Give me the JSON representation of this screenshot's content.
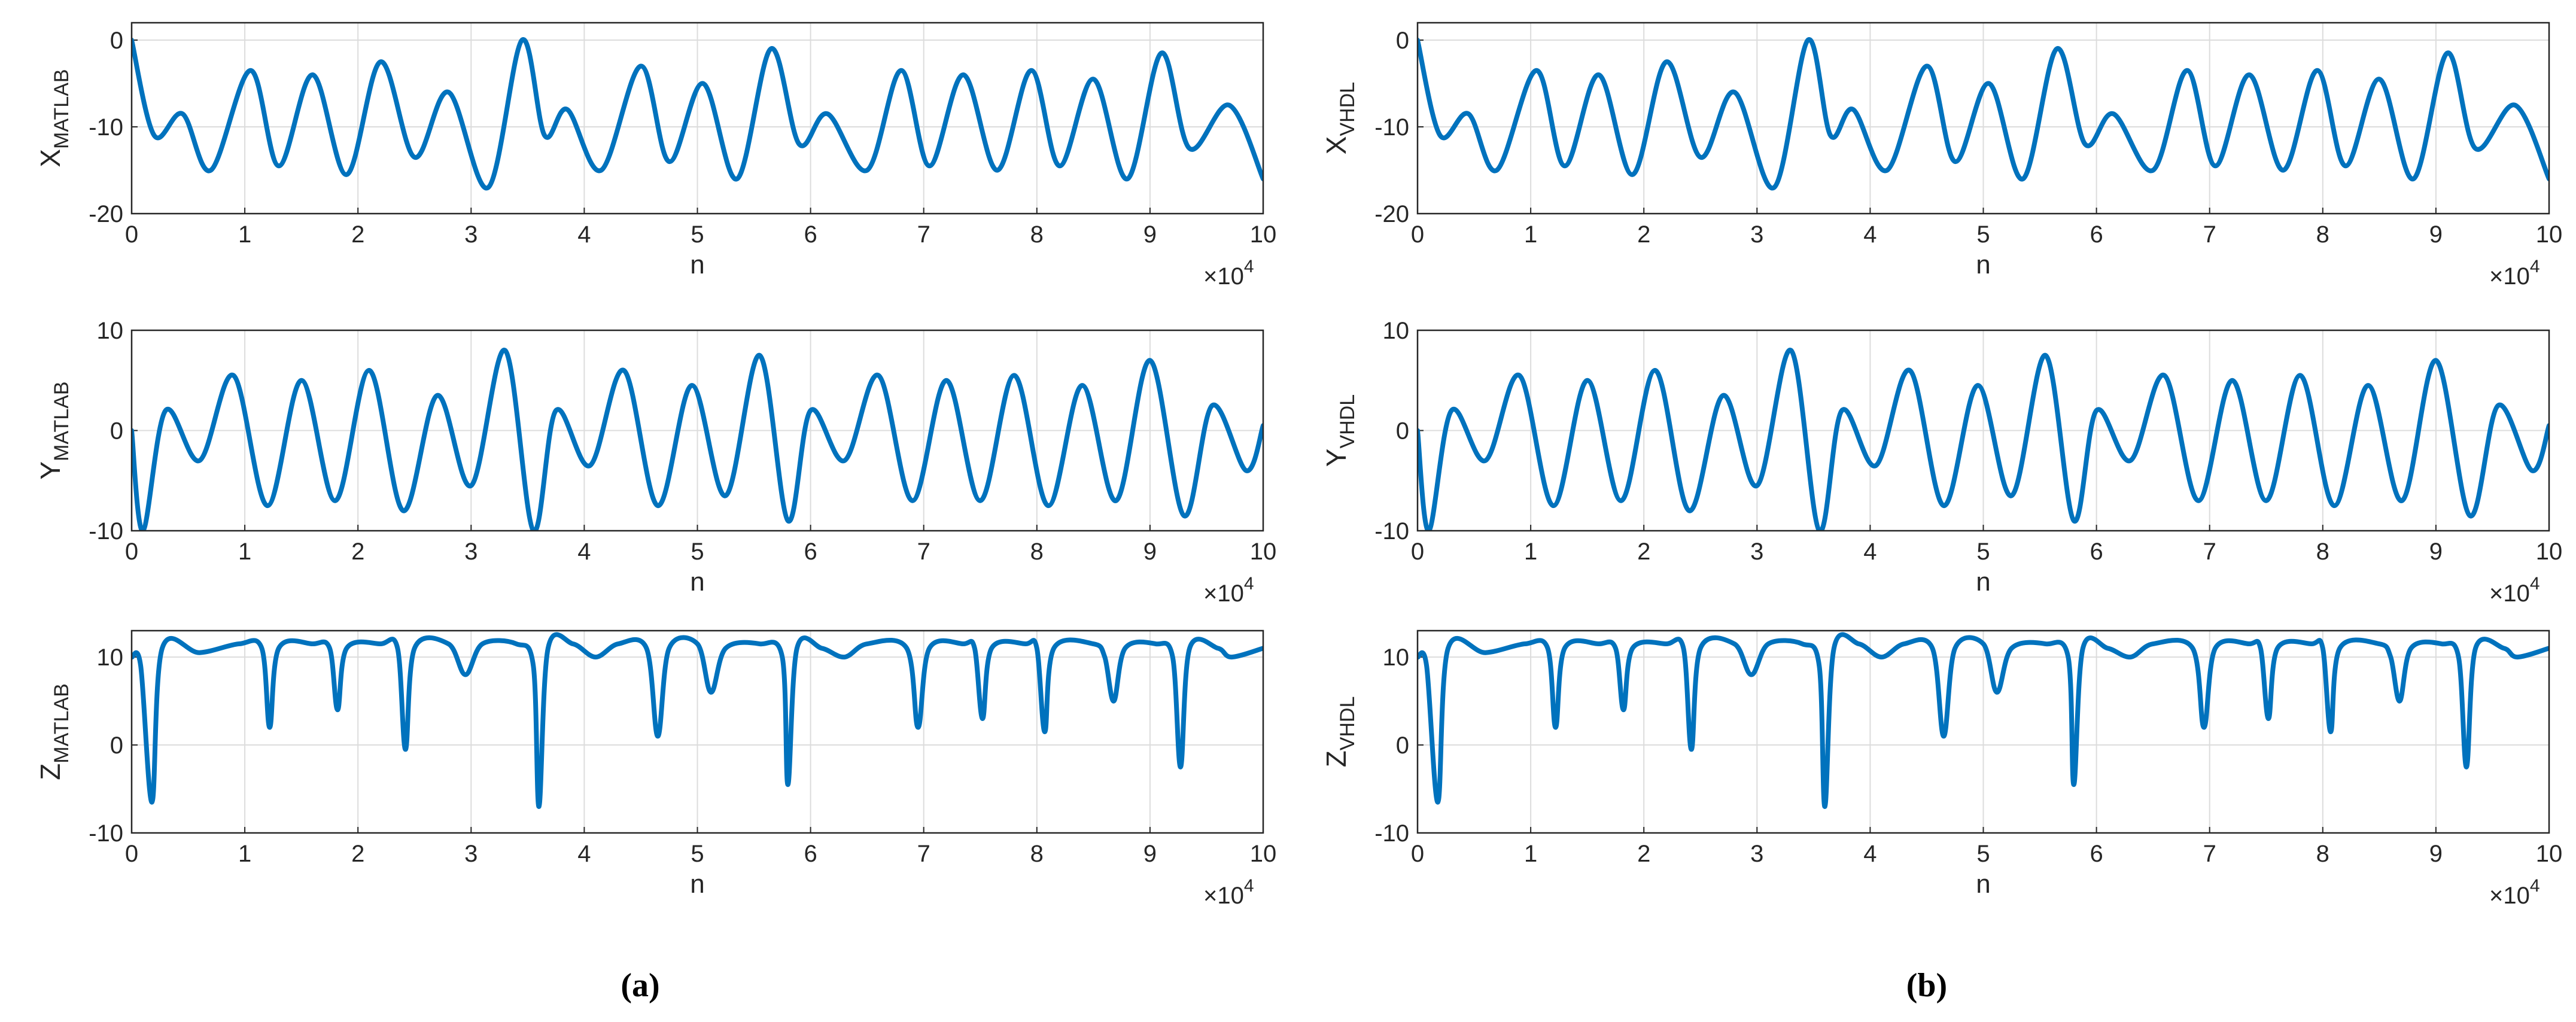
{
  "chart_data": [
    {
      "type": "line",
      "ylabel": "X",
      "ylabel_sub": "MATLAB",
      "xlabel": "n",
      "x_multiplier": "×10",
      "x_exponent": "4",
      "color": "#0072bd",
      "grid": true,
      "xlim": [
        0,
        10
      ],
      "xticks": [
        0,
        1,
        2,
        3,
        4,
        5,
        6,
        7,
        8,
        9,
        10
      ],
      "ylim": [
        -20,
        2
      ],
      "yticks": [
        -20,
        -10,
        0
      ],
      "x": [
        0,
        0.2,
        0.45,
        0.7,
        1.05,
        1.3,
        1.6,
        1.9,
        2.2,
        2.5,
        2.8,
        3.15,
        3.45,
        3.65,
        3.85,
        4.15,
        4.5,
        4.75,
        5.05,
        5.35,
        5.65,
        5.9,
        6.15,
        6.5,
        6.8,
        7.05,
        7.35,
        7.65,
        7.95,
        8.2,
        8.5,
        8.8,
        9.1,
        9.35,
        9.7,
        10
      ],
      "values": [
        0,
        -11,
        -8.5,
        -15,
        -3.5,
        -14.5,
        -4,
        -15.5,
        -2.5,
        -13.5,
        -6,
        -17,
        0,
        -11,
        -8,
        -15,
        -3,
        -14,
        -5,
        -16,
        -1,
        -12,
        -8.5,
        -15,
        -3.5,
        -14.5,
        -4,
        -15,
        -3.5,
        -14.5,
        -4.5,
        -16,
        -1.5,
        -12.5,
        -7.5,
        -16
      ]
    },
    {
      "type": "line",
      "ylabel": "Y",
      "ylabel_sub": "MATLAB",
      "xlabel": "n",
      "x_multiplier": "×10",
      "x_exponent": "4",
      "color": "#0072bd",
      "grid": true,
      "xlim": [
        0,
        10
      ],
      "xticks": [
        0,
        1,
        2,
        3,
        4,
        5,
        6,
        7,
        8,
        9,
        10
      ],
      "ylim": [
        -10,
        10
      ],
      "yticks": [
        -10,
        0,
        10
      ],
      "x": [
        0,
        0.1,
        0.3,
        0.6,
        0.9,
        1.2,
        1.5,
        1.8,
        2.1,
        2.4,
        2.7,
        3.0,
        3.3,
        3.55,
        3.75,
        4.05,
        4.35,
        4.65,
        4.95,
        5.25,
        5.55,
        5.8,
        6.0,
        6.3,
        6.6,
        6.9,
        7.2,
        7.5,
        7.8,
        8.1,
        8.4,
        8.7,
        9.0,
        9.3,
        9.55,
        9.85,
        10
      ],
      "values": [
        0,
        -10,
        2,
        -3,
        5.5,
        -7.5,
        5,
        -7,
        6,
        -8,
        3.5,
        -5.5,
        8,
        -10,
        2,
        -3.5,
        6,
        -7.5,
        4.5,
        -6.5,
        7.5,
        -9,
        2,
        -3,
        5.5,
        -7,
        5,
        -7,
        5.5,
        -7.5,
        4.5,
        -7,
        7,
        -8.5,
        2.5,
        -4,
        0.5
      ]
    },
    {
      "type": "line",
      "ylabel": "Z",
      "ylabel_sub": "MATLAB",
      "xlabel": "n",
      "x_multiplier": "×10",
      "x_exponent": "4",
      "color": "#0072bd",
      "grid": true,
      "xlim": [
        0,
        10
      ],
      "xticks": [
        0,
        1,
        2,
        3,
        4,
        5,
        6,
        7,
        8,
        9,
        10
      ],
      "ylim": [
        -10,
        13
      ],
      "yticks": [
        -10,
        0,
        10
      ],
      "x": [
        0,
        0.08,
        0.18,
        0.27,
        0.6,
        0.95,
        1.15,
        1.22,
        1.3,
        1.6,
        1.75,
        1.82,
        1.9,
        2.2,
        2.35,
        2.42,
        2.5,
        2.8,
        2.95,
        3.1,
        3.4,
        3.55,
        3.6,
        3.68,
        3.9,
        4.1,
        4.3,
        4.55,
        4.65,
        4.75,
        5.0,
        5.12,
        5.25,
        5.55,
        5.75,
        5.8,
        5.88,
        6.1,
        6.3,
        6.5,
        6.85,
        6.95,
        7.05,
        7.35,
        7.45,
        7.52,
        7.6,
        7.9,
        8.0,
        8.07,
        8.15,
        8.5,
        8.6,
        8.68,
        8.78,
        9.05,
        9.2,
        9.27,
        9.35,
        9.6,
        9.72,
        10
      ],
      "values": [
        10,
        9,
        -6.5,
        11,
        10.5,
        11.5,
        11,
        2,
        11,
        11.5,
        11,
        4,
        11,
        11.5,
        11,
        -0.5,
        11,
        11.5,
        8,
        11.5,
        11.5,
        9,
        -7,
        11,
        11.5,
        10,
        11.5,
        11,
        1,
        11,
        11.5,
        6,
        11,
        11.5,
        10,
        -4.5,
        11,
        11,
        10,
        11.5,
        11,
        2,
        11,
        11.5,
        11,
        3,
        11,
        11.5,
        11,
        1.5,
        11,
        11.5,
        10,
        5,
        11,
        11.5,
        10,
        -2.5,
        11,
        11,
        10,
        11
      ]
    },
    {
      "type": "line",
      "ylabel": "X",
      "ylabel_sub": "VHDL",
      "xlabel": "n",
      "x_multiplier": "×10",
      "x_exponent": "4",
      "color": "#0072bd",
      "grid": true,
      "xlim": [
        0,
        10
      ],
      "xticks": [
        0,
        1,
        2,
        3,
        4,
        5,
        6,
        7,
        8,
        9,
        10
      ],
      "ylim": [
        -20,
        2
      ],
      "yticks": [
        -20,
        -10,
        0
      ],
      "x": [
        0,
        0.2,
        0.45,
        0.7,
        1.05,
        1.3,
        1.6,
        1.9,
        2.2,
        2.5,
        2.8,
        3.15,
        3.45,
        3.65,
        3.85,
        4.15,
        4.5,
        4.75,
        5.05,
        5.35,
        5.65,
        5.9,
        6.15,
        6.5,
        6.8,
        7.05,
        7.35,
        7.65,
        7.95,
        8.2,
        8.5,
        8.8,
        9.1,
        9.35,
        9.7,
        10
      ],
      "values": [
        0,
        -11,
        -8.5,
        -15,
        -3.5,
        -14.5,
        -4,
        -15.5,
        -2.5,
        -13.5,
        -6,
        -17,
        0,
        -11,
        -8,
        -15,
        -3,
        -14,
        -5,
        -16,
        -1,
        -12,
        -8.5,
        -15,
        -3.5,
        -14.5,
        -4,
        -15,
        -3.5,
        -14.5,
        -4.5,
        -16,
        -1.5,
        -12.5,
        -7.5,
        -16
      ]
    },
    {
      "type": "line",
      "ylabel": "Y",
      "ylabel_sub": "VHDL",
      "xlabel": "n",
      "x_multiplier": "×10",
      "x_exponent": "4",
      "color": "#0072bd",
      "grid": true,
      "xlim": [
        0,
        10
      ],
      "xticks": [
        0,
        1,
        2,
        3,
        4,
        5,
        6,
        7,
        8,
        9,
        10
      ],
      "ylim": [
        -10,
        10
      ],
      "yticks": [
        -10,
        0,
        10
      ],
      "x": [
        0,
        0.1,
        0.3,
        0.6,
        0.9,
        1.2,
        1.5,
        1.8,
        2.1,
        2.4,
        2.7,
        3.0,
        3.3,
        3.55,
        3.75,
        4.05,
        4.35,
        4.65,
        4.95,
        5.25,
        5.55,
        5.8,
        6.0,
        6.3,
        6.6,
        6.9,
        7.2,
        7.5,
        7.8,
        8.1,
        8.4,
        8.7,
        9.0,
        9.3,
        9.55,
        9.85,
        10
      ],
      "values": [
        0,
        -10,
        2,
        -3,
        5.5,
        -7.5,
        5,
        -7,
        6,
        -8,
        3.5,
        -5.5,
        8,
        -10,
        2,
        -3.5,
        6,
        -7.5,
        4.5,
        -6.5,
        7.5,
        -9,
        2,
        -3,
        5.5,
        -7,
        5,
        -7,
        5.5,
        -7.5,
        4.5,
        -7,
        7,
        -8.5,
        2.5,
        -4,
        0.5
      ]
    },
    {
      "type": "line",
      "ylabel": "Z",
      "ylabel_sub": "VHDL",
      "xlabel": "n",
      "x_multiplier": "×10",
      "x_exponent": "4",
      "color": "#0072bd",
      "grid": true,
      "xlim": [
        0,
        10
      ],
      "xticks": [
        0,
        1,
        2,
        3,
        4,
        5,
        6,
        7,
        8,
        9,
        10
      ],
      "ylim": [
        -10,
        13
      ],
      "yticks": [
        -10,
        0,
        10
      ],
      "x": [
        0,
        0.08,
        0.18,
        0.27,
        0.6,
        0.95,
        1.15,
        1.22,
        1.3,
        1.6,
        1.75,
        1.82,
        1.9,
        2.2,
        2.35,
        2.42,
        2.5,
        2.8,
        2.95,
        3.1,
        3.4,
        3.55,
        3.6,
        3.68,
        3.9,
        4.1,
        4.3,
        4.55,
        4.65,
        4.75,
        5.0,
        5.12,
        5.25,
        5.55,
        5.75,
        5.8,
        5.88,
        6.1,
        6.3,
        6.5,
        6.85,
        6.95,
        7.05,
        7.35,
        7.45,
        7.52,
        7.6,
        7.9,
        8.0,
        8.07,
        8.15,
        8.5,
        8.6,
        8.68,
        8.78,
        9.05,
        9.2,
        9.27,
        9.35,
        9.6,
        9.72,
        10
      ],
      "values": [
        10,
        9,
        -6.5,
        11,
        10.5,
        11.5,
        11,
        2,
        11,
        11.5,
        11,
        4,
        11,
        11.5,
        11,
        -0.5,
        11,
        11.5,
        8,
        11.5,
        11.5,
        9,
        -7,
        11,
        11.5,
        10,
        11.5,
        11,
        1,
        11,
        11.5,
        6,
        11,
        11.5,
        10,
        -4.5,
        11,
        11,
        10,
        11.5,
        11,
        2,
        11,
        11.5,
        11,
        3,
        11,
        11.5,
        11,
        1.5,
        11,
        11.5,
        10,
        5,
        11,
        11.5,
        10,
        -2.5,
        11,
        11,
        10,
        11
      ]
    }
  ],
  "captions": [
    "(a)",
    "(b)"
  ]
}
